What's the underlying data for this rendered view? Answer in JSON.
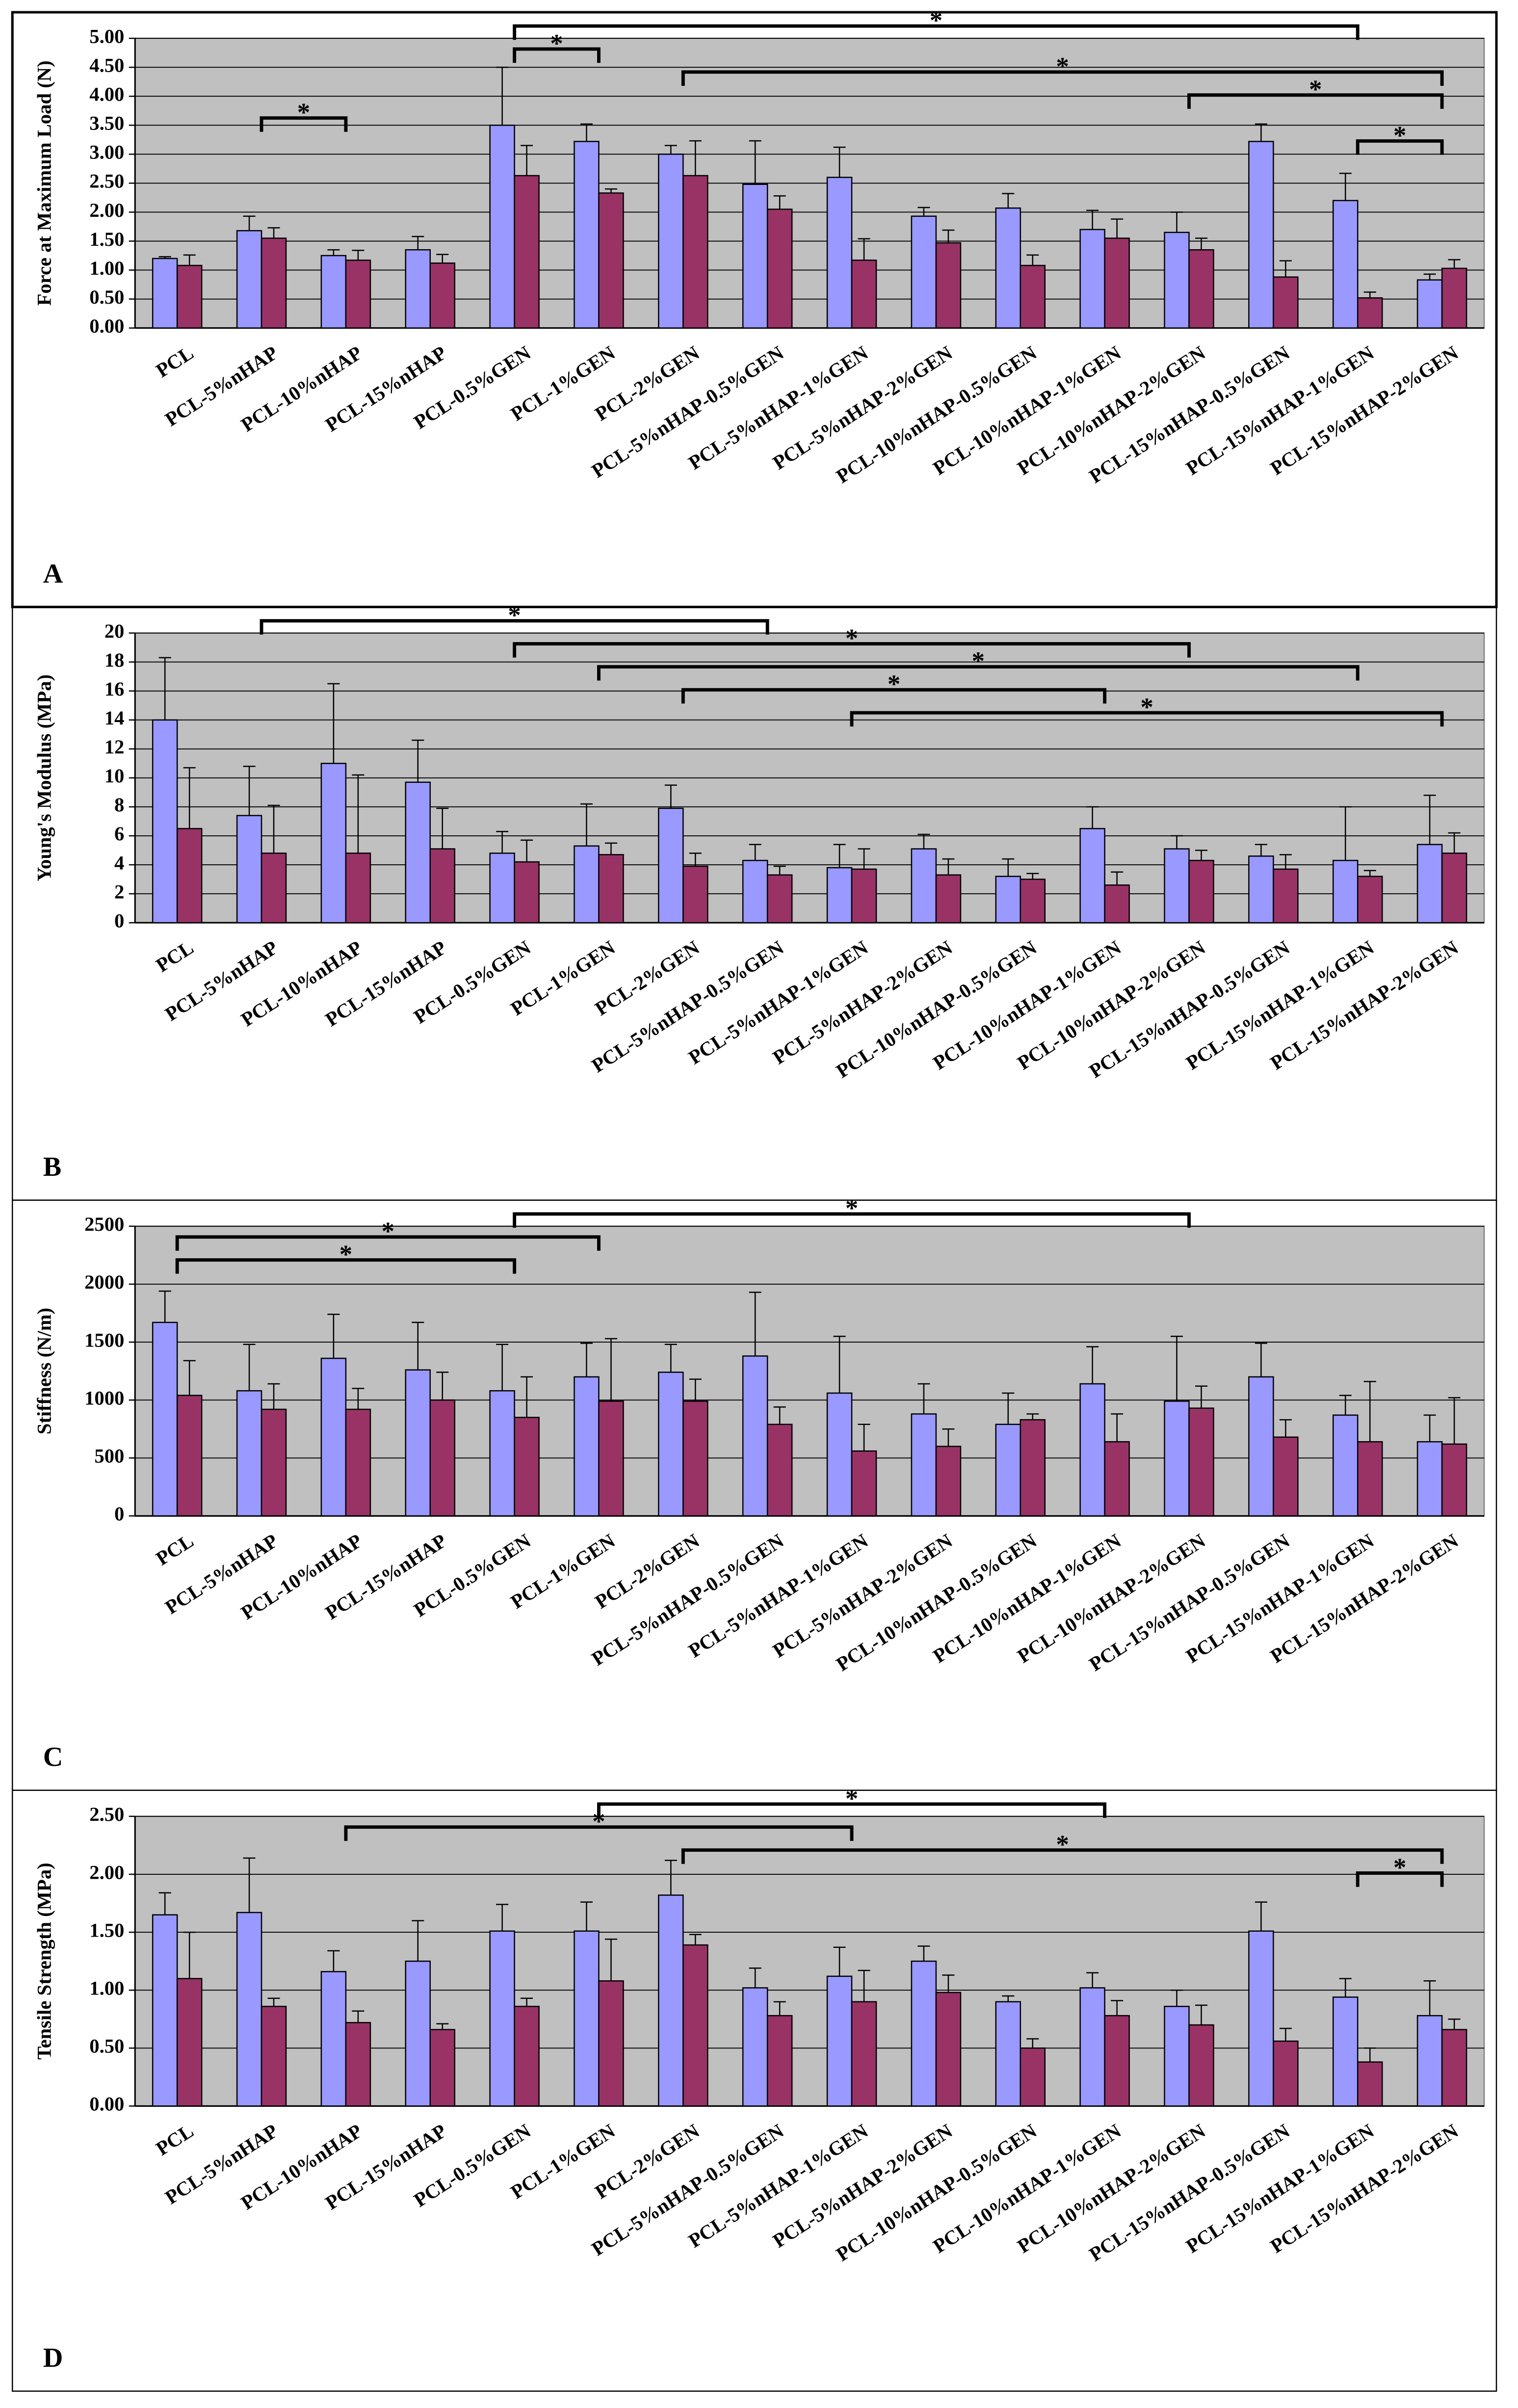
{
  "chart_data": [
    {
      "type": "bar",
      "panel_label": "A",
      "ylabel": "Force at Maximum Load (N)",
      "categories": [
        "PCL",
        "PCL-5%nHAP",
        "PCL-10%nHAP",
        "PCL-15%nHAP",
        "PCL-0.5%GEN",
        "PCL-1%GEN",
        "PCL-2%GEN",
        "PCL-5%nHAP-0.5%GEN",
        "PCL-5%nHAP-1%GEN",
        "PCL-5%nHAP-2%GEN",
        "PCL-10%nHAP-0.5%GEN",
        "PCL-10%nHAP-1%GEN",
        "PCL-10%nHAP-2%GEN",
        "PCL-15%nHAP-0.5%GEN",
        "PCL-15%nHAP-1%GEN",
        "PCL-15%nHAP-2%GEN"
      ],
      "series": [
        {
          "color": "#9999ff",
          "values": [
            1.2,
            1.68,
            1.25,
            1.35,
            3.5,
            3.22,
            3.0,
            2.48,
            2.6,
            1.93,
            2.07,
            1.7,
            1.65,
            3.22,
            2.2,
            0.83
          ],
          "errors": [
            0.03,
            0.25,
            0.1,
            0.23,
            1.0,
            0.3,
            0.15,
            0.75,
            0.52,
            0.15,
            0.25,
            0.33,
            0.35,
            0.3,
            0.47,
            0.1
          ]
        },
        {
          "color": "#993366",
          "values": [
            1.08,
            1.55,
            1.17,
            1.12,
            2.63,
            2.33,
            2.63,
            2.05,
            1.17,
            1.47,
            1.08,
            1.55,
            1.35,
            0.88,
            0.52,
            1.03
          ],
          "errors": [
            0.18,
            0.18,
            0.17,
            0.15,
            0.52,
            0.07,
            0.6,
            0.23,
            0.37,
            0.22,
            0.18,
            0.33,
            0.2,
            0.28,
            0.1,
            0.15
          ]
        }
      ],
      "ylim": [
        0,
        5
      ],
      "yticks": [
        {
          "value": 0,
          "label": "0.00"
        },
        {
          "value": 0.5,
          "label": "0.50"
        },
        {
          "value": 1,
          "label": "1.00"
        },
        {
          "value": 1.5,
          "label": "1.50"
        },
        {
          "value": 2,
          "label": "2.00"
        },
        {
          "value": 2.5,
          "label": "2.50"
        },
        {
          "value": 3,
          "label": "3.00"
        },
        {
          "value": 3.5,
          "label": "3.50"
        },
        {
          "value": 4,
          "label": "4.00"
        },
        {
          "value": 4.5,
          "label": "4.50"
        },
        {
          "value": 5,
          "label": "5.00"
        }
      ],
      "grid": true,
      "annotations": [
        {
          "text": "*",
          "from": 4,
          "to": 14
        },
        {
          "text": "*",
          "from": 4,
          "to": 5
        },
        {
          "text": "*",
          "from": 6,
          "to": 15
        },
        {
          "text": "*",
          "from": 12,
          "to": 15
        },
        {
          "text": "*",
          "from": 1,
          "to": 2
        },
        {
          "text": "*",
          "from": 14,
          "to": 15
        }
      ]
    },
    {
      "type": "bar",
      "panel_label": "B",
      "ylabel": "Young's Modulus (MPa)",
      "categories": [
        "PCL",
        "PCL-5%nHAP",
        "PCL-10%nHAP",
        "PCL-15%nHAP",
        "PCL-0.5%GEN",
        "PCL-1%GEN",
        "PCL-2%GEN",
        "PCL-5%nHAP-0.5%GEN",
        "PCL-5%nHAP-1%GEN",
        "PCL-5%nHAP-2%GEN",
        "PCL-10%nHAP-0.5%GEN",
        "PCL-10%nHAP-1%GEN",
        "PCL-10%nHAP-2%GEN",
        "PCL-15%nHAP-0.5%GEN",
        "PCL-15%nHAP-1%GEN",
        "PCL-15%nHAP-2%GEN"
      ],
      "series": [
        {
          "color": "#9999ff",
          "values": [
            14.0,
            7.4,
            11.0,
            9.7,
            4.8,
            5.3,
            7.9,
            4.3,
            3.8,
            5.1,
            3.2,
            6.5,
            5.1,
            4.6,
            4.3,
            5.4
          ],
          "errors": [
            4.3,
            3.4,
            5.5,
            2.9,
            1.5,
            2.9,
            1.6,
            1.1,
            1.6,
            1.0,
            1.2,
            1.5,
            0.9,
            0.8,
            3.7,
            3.4
          ]
        },
        {
          "color": "#993366",
          "values": [
            6.5,
            4.8,
            4.8,
            5.1,
            4.2,
            4.7,
            3.9,
            3.3,
            3.7,
            3.3,
            3.0,
            2.6,
            4.3,
            3.7,
            3.2,
            4.8
          ],
          "errors": [
            4.2,
            3.3,
            5.4,
            2.8,
            1.5,
            0.8,
            0.9,
            0.6,
            1.4,
            1.1,
            0.4,
            0.9,
            0.7,
            1.0,
            0.4,
            1.4
          ]
        }
      ],
      "ylim": [
        0,
        20
      ],
      "yticks": [
        0,
        2,
        4,
        6,
        8,
        10,
        12,
        14,
        16,
        18,
        20
      ],
      "grid": true,
      "annotations": [
        {
          "text": "*",
          "from": 1,
          "to": 7
        },
        {
          "text": "*",
          "from": 4,
          "to": 12
        },
        {
          "text": "*",
          "from": 5,
          "to": 14
        },
        {
          "text": "*",
          "from": 6,
          "to": 11
        },
        {
          "text": "*",
          "from": 8,
          "to": 15
        }
      ]
    },
    {
      "type": "bar",
      "panel_label": "C",
      "ylabel": "Stiffness (N/m)",
      "categories": [
        "PCL",
        "PCL-5%nHAP",
        "PCL-10%nHAP",
        "PCL-15%nHAP",
        "PCL-0.5%GEN",
        "PCL-1%GEN",
        "PCL-2%GEN",
        "PCL-5%nHAP-0.5%GEN",
        "PCL-5%nHAP-1%GEN",
        "PCL-5%nHAP-2%GEN",
        "PCL-10%nHAP-0.5%GEN",
        "PCL-10%nHAP-1%GEN",
        "PCL-10%nHAP-2%GEN",
        "PCL-15%nHAP-0.5%GEN",
        "PCL-15%nHAP-1%GEN",
        "PCL-15%nHAP-2%GEN"
      ],
      "series": [
        {
          "color": "#9999ff",
          "values": [
            1670,
            1080,
            1360,
            1260,
            1080,
            1200,
            1240,
            1380,
            1060,
            880,
            790,
            1140,
            990,
            1200,
            870,
            640
          ],
          "errors": [
            270,
            400,
            380,
            410,
            400,
            290,
            240,
            550,
            490,
            260,
            270,
            320,
            560,
            290,
            170,
            230
          ]
        },
        {
          "color": "#993366",
          "values": [
            1040,
            920,
            920,
            1000,
            850,
            990,
            990,
            790,
            560,
            600,
            830,
            640,
            930,
            680,
            640,
            620
          ],
          "errors": [
            300,
            220,
            180,
            240,
            350,
            540,
            190,
            150,
            230,
            150,
            50,
            240,
            190,
            150,
            520,
            400
          ]
        }
      ],
      "ylim": [
        0,
        2500
      ],
      "yticks": [
        0,
        500,
        1000,
        1500,
        2000,
        2500
      ],
      "grid": true,
      "annotations": [
        {
          "text": "*",
          "from": 4,
          "to": 12
        },
        {
          "text": "*",
          "from": 0,
          "to": 5
        },
        {
          "text": "*",
          "from": 0,
          "to": 4
        }
      ]
    },
    {
      "type": "bar",
      "panel_label": "D",
      "ylabel": "Tensile Strength (MPa)",
      "categories": [
        "PCL",
        "PCL-5%nHAP",
        "PCL-10%nHAP",
        "PCL-15%nHAP",
        "PCL-0.5%GEN",
        "PCL-1%GEN",
        "PCL-2%GEN",
        "PCL-5%nHAP-0.5%GEN",
        "PCL-5%nHAP-1%GEN",
        "PCL-5%nHAP-2%GEN",
        "PCL-10%nHAP-0.5%GEN",
        "PCL-10%nHAP-1%GEN",
        "PCL-10%nHAP-2%GEN",
        "PCL-15%nHAP-0.5%GEN",
        "PCL-15%nHAP-1%GEN",
        "PCL-15%nHAP-2%GEN"
      ],
      "series": [
        {
          "color": "#9999ff",
          "values": [
            1.65,
            1.67,
            1.16,
            1.25,
            1.51,
            1.51,
            1.82,
            1.02,
            1.12,
            1.25,
            0.9,
            1.02,
            0.86,
            1.51,
            0.94,
            0.78
          ],
          "errors": [
            0.19,
            0.47,
            0.18,
            0.35,
            0.23,
            0.25,
            0.3,
            0.17,
            0.25,
            0.13,
            0.05,
            0.13,
            0.14,
            0.25,
            0.16,
            0.3
          ]
        },
        {
          "color": "#993366",
          "values": [
            1.1,
            0.86,
            0.72,
            0.66,
            0.86,
            1.08,
            1.39,
            0.78,
            0.9,
            0.98,
            0.5,
            0.78,
            0.7,
            0.56,
            0.38,
            0.66
          ],
          "errors": [
            0.4,
            0.07,
            0.1,
            0.05,
            0.07,
            0.36,
            0.09,
            0.12,
            0.27,
            0.15,
            0.08,
            0.13,
            0.17,
            0.11,
            0.12,
            0.09
          ]
        }
      ],
      "ylim": [
        0,
        2.5
      ],
      "yticks": [
        {
          "value": 0,
          "label": "0.00"
        },
        {
          "value": 0.5,
          "label": "0.50"
        },
        {
          "value": 1,
          "label": "1.00"
        },
        {
          "value": 1.5,
          "label": "1.50"
        },
        {
          "value": 2,
          "label": "2.00"
        },
        {
          "value": 2.5,
          "label": "2.50"
        }
      ],
      "grid": true,
      "annotations": [
        {
          "text": "*",
          "from": 5,
          "to": 11
        },
        {
          "text": "*",
          "from": 2,
          "to": 8
        },
        {
          "text": "*",
          "from": 6,
          "to": 15
        },
        {
          "text": "*",
          "from": 14,
          "to": 15
        }
      ]
    }
  ]
}
